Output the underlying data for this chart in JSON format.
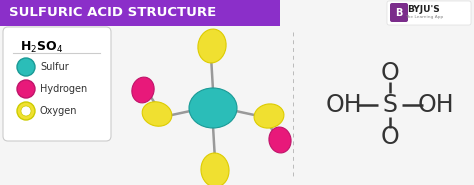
{
  "title": "SULFURIC ACID STRUCTURE",
  "title_bg_color": "#8B2FC9",
  "title_text_color": "#FFFFFF",
  "bg_color": "#F5F5F5",
  "legend_items": [
    {
      "label": "Sulfur",
      "color": "#2BBDB8",
      "edge": "#1A9A96"
    },
    {
      "label": "Hydrogen",
      "color": "#E8197A",
      "edge": "#C0146A"
    },
    {
      "label": "Oxygen",
      "color": "#F0E030",
      "edge": "#CCCC00"
    }
  ],
  "sulfur_color": "#2BBDB8",
  "oxygen_color": "#F0E030",
  "hydrogen_color": "#E8197A",
  "bond_color": "#999999",
  "divider_color": "#BBBBBB",
  "struct_text_color": "#333333",
  "byju_bg": "#7B2D8B",
  "byju_icon_bg": "#7B2D8B"
}
